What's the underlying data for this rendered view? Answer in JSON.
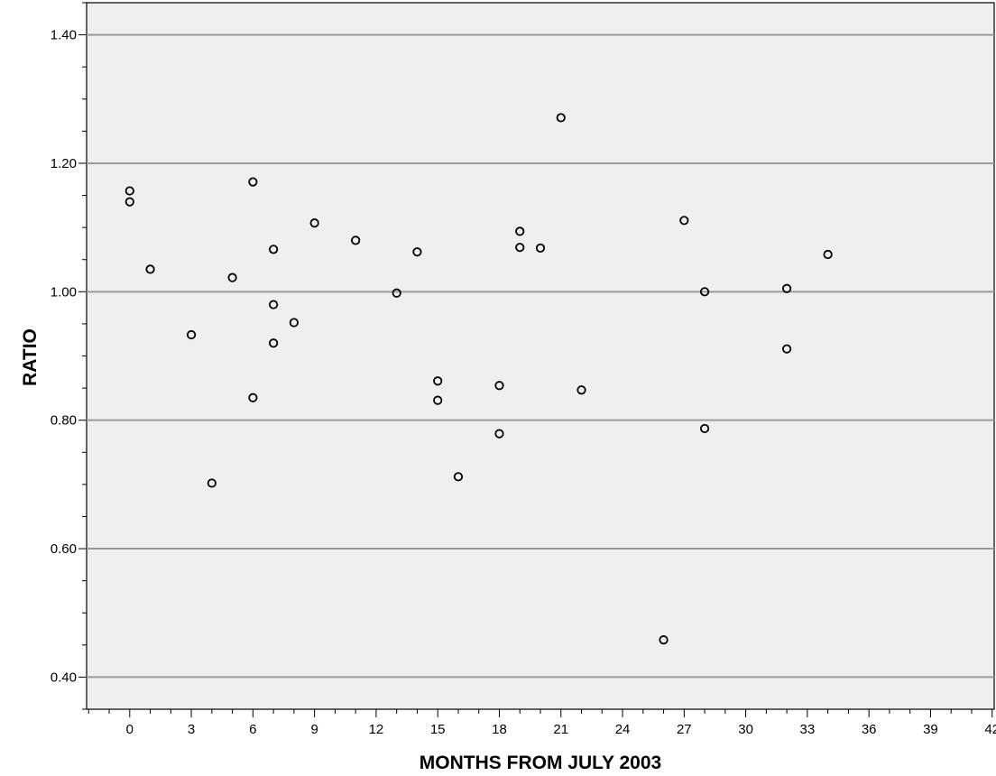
{
  "chart_data": {
    "type": "scatter",
    "title": "",
    "xlabel": "MONTHS FROM JULY 2003",
    "ylabel": "RATIO",
    "xlim": [
      -2.1,
      42.1
    ],
    "ylim": [
      0.35,
      1.45
    ],
    "x_ticks": [
      0,
      3,
      6,
      9,
      12,
      15,
      18,
      21,
      24,
      27,
      30,
      33,
      36,
      39,
      42
    ],
    "x_tick_labels": [
      "0",
      "3",
      "6",
      "9",
      "12",
      "15",
      "18",
      "21",
      "24",
      "27",
      "30",
      "33",
      "36",
      "39",
      "42"
    ],
    "y_ticks": [
      0.4,
      0.6,
      0.8,
      1.0,
      1.2,
      1.4
    ],
    "y_tick_labels": [
      "0.40",
      "0.60",
      "0.80",
      "1.00",
      "1.20",
      "1.40"
    ],
    "grid": "horizontal",
    "colors": {
      "plot_background": "#efefef",
      "grid": "#9a9a9a",
      "marker": "#000000"
    },
    "points": [
      {
        "x": 0,
        "y": 1.157
      },
      {
        "x": 0,
        "y": 1.14
      },
      {
        "x": 1,
        "y": 1.035
      },
      {
        "x": 3,
        "y": 0.933
      },
      {
        "x": 4,
        "y": 0.702
      },
      {
        "x": 5,
        "y": 1.022
      },
      {
        "x": 6,
        "y": 1.171
      },
      {
        "x": 6,
        "y": 0.835
      },
      {
        "x": 7,
        "y": 1.066
      },
      {
        "x": 7,
        "y": 0.98
      },
      {
        "x": 7,
        "y": 0.92
      },
      {
        "x": 8,
        "y": 0.952
      },
      {
        "x": 9,
        "y": 1.107
      },
      {
        "x": 11,
        "y": 1.08
      },
      {
        "x": 13,
        "y": 0.998
      },
      {
        "x": 14,
        "y": 1.062
      },
      {
        "x": 15,
        "y": 0.861
      },
      {
        "x": 15,
        "y": 0.831
      },
      {
        "x": 16,
        "y": 0.712
      },
      {
        "x": 18,
        "y": 0.854
      },
      {
        "x": 18,
        "y": 0.779
      },
      {
        "x": 19,
        "y": 1.094
      },
      {
        "x": 19,
        "y": 1.069
      },
      {
        "x": 20,
        "y": 1.068
      },
      {
        "x": 21,
        "y": 1.271
      },
      {
        "x": 22,
        "y": 0.847
      },
      {
        "x": 26,
        "y": 0.458
      },
      {
        "x": 27,
        "y": 1.111
      },
      {
        "x": 28,
        "y": 1.0
      },
      {
        "x": 28,
        "y": 0.787
      },
      {
        "x": 32,
        "y": 1.005
      },
      {
        "x": 32,
        "y": 0.911
      },
      {
        "x": 34,
        "y": 1.058
      }
    ]
  }
}
